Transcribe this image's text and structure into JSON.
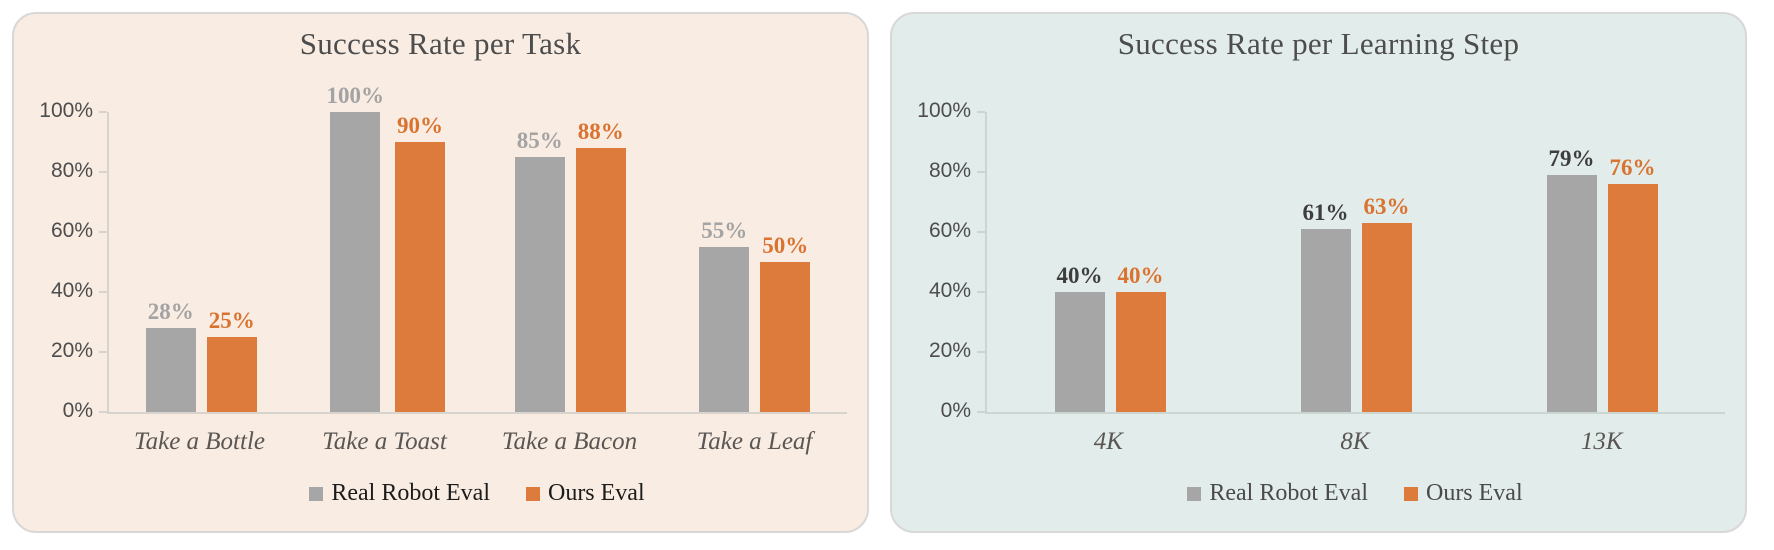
{
  "page": {
    "background": "#ffffff"
  },
  "chart_data": [
    {
      "type": "bar",
      "title": "Success Rate per Task",
      "panel_bg": "#F9ECE3",
      "panel_border": "#D8D8D8",
      "title_color": "#4D4D4D",
      "axis_color": "#D9D3CD",
      "xlabel": "",
      "ylabel": "",
      "ylim": [
        0,
        100
      ],
      "grid": false,
      "legend_position": "bottom",
      "legend_text_color": "#1C1C1C",
      "yticks": [
        {
          "value": 0,
          "label": "0%"
        },
        {
          "value": 20,
          "label": "20%"
        },
        {
          "value": 40,
          "label": "40%"
        },
        {
          "value": 60,
          "label": "60%"
        },
        {
          "value": 80,
          "label": "80%"
        },
        {
          "value": 100,
          "label": "100%"
        }
      ],
      "categories": [
        "Take a Bottle",
        "Take a Toast",
        "Take a Bacon",
        "Take a Leaf"
      ],
      "series": [
        {
          "name": "Real Robot Eval",
          "color": "#A6A6A6",
          "label_color": "#A3A3A3",
          "values": [
            28,
            100,
            85,
            55
          ],
          "labels": [
            "28%",
            "100%",
            "85%",
            "55%"
          ]
        },
        {
          "name": "Ours Eval",
          "color": "#DD7B3C",
          "label_color": "#D9732F",
          "values": [
            25,
            90,
            88,
            50
          ],
          "labels": [
            "25%",
            "90%",
            "88%",
            "50%"
          ]
        }
      ]
    },
    {
      "type": "bar",
      "title": "Success Rate per Learning Step",
      "panel_bg": "#E2ECEA",
      "panel_border": "#D8D8D8",
      "title_color": "#4D4D4D",
      "axis_color": "#CBD6D3",
      "xlabel": "",
      "ylabel": "",
      "ylim": [
        0,
        100
      ],
      "grid": false,
      "legend_position": "bottom",
      "legend_text_color": "#4A4A4A",
      "yticks": [
        {
          "value": 0,
          "label": "0%"
        },
        {
          "value": 20,
          "label": "20%"
        },
        {
          "value": 40,
          "label": "40%"
        },
        {
          "value": 60,
          "label": "60%"
        },
        {
          "value": 80,
          "label": "80%"
        },
        {
          "value": 100,
          "label": "100%"
        }
      ],
      "categories": [
        "4K",
        "8K",
        "13K"
      ],
      "series": [
        {
          "name": "Real Robot Eval",
          "color": "#A6A6A6",
          "label_color": "#3D3D3D",
          "values": [
            40,
            61,
            79
          ],
          "labels": [
            "40%",
            "61%",
            "79%"
          ]
        },
        {
          "name": "Ours Eval",
          "color": "#DD7B3C",
          "label_color": "#D9732F",
          "values": [
            40,
            63,
            76
          ],
          "labels": [
            "40%",
            "63%",
            "76%"
          ]
        }
      ]
    }
  ]
}
